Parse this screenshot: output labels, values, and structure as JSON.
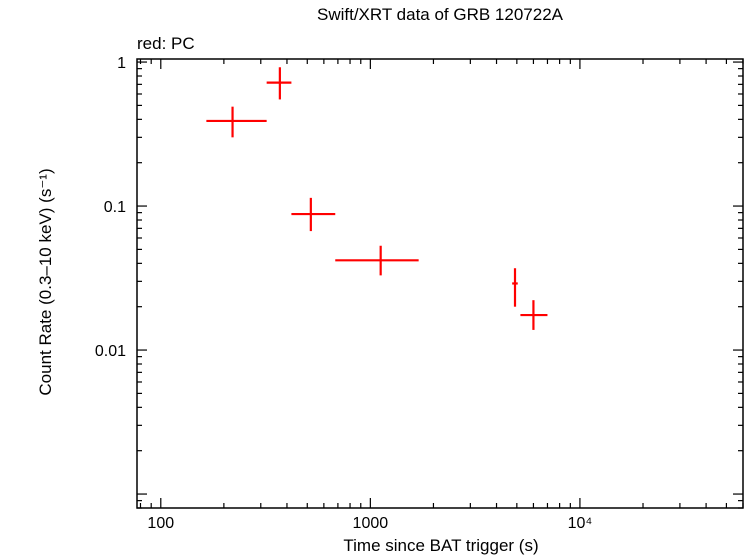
{
  "chart_data": {
    "type": "scatter",
    "title": "Swift/XRT data of GRB 120722A",
    "subtitle": "red: PC",
    "xlabel": "Time since BAT trigger (s)",
    "ylabel": "Count Rate (0.3–10 keV) (s⁻¹)",
    "xscale": "log",
    "yscale": "log",
    "xlim": [
      77,
      60000
    ],
    "ylim": [
      0.0008,
      1.05
    ],
    "xticks": [
      {
        "value": 100,
        "label": "100"
      },
      {
        "value": 1000,
        "label": "1000"
      },
      {
        "value": 10000,
        "label": "10⁴"
      }
    ],
    "yticks": [
      {
        "value": 1,
        "label": "1"
      },
      {
        "value": 0.1,
        "label": "0.1"
      },
      {
        "value": 0.01,
        "label": "0.01"
      }
    ],
    "color": "#ff0000",
    "series": [
      {
        "points": [
          {
            "x": 220,
            "xlo": 165,
            "xhi": 320,
            "y": 0.39,
            "ylo": 0.3,
            "yhi": 0.49
          },
          {
            "x": 370,
            "xlo": 320,
            "xhi": 420,
            "y": 0.72,
            "ylo": 0.55,
            "yhi": 0.92
          },
          {
            "x": 520,
            "xlo": 420,
            "xhi": 680,
            "y": 0.088,
            "ylo": 0.067,
            "yhi": 0.114
          },
          {
            "x": 1120,
            "xlo": 680,
            "xhi": 1700,
            "y": 0.042,
            "ylo": 0.033,
            "yhi": 0.053
          },
          {
            "x": 4900,
            "xlo": 4750,
            "xhi": 5050,
            "y": 0.029,
            "ylo": 0.02,
            "yhi": 0.037
          },
          {
            "x": 6000,
            "xlo": 5200,
            "xhi": 7000,
            "y": 0.0175,
            "ylo": 0.0138,
            "yhi": 0.0222
          }
        ]
      }
    ]
  }
}
